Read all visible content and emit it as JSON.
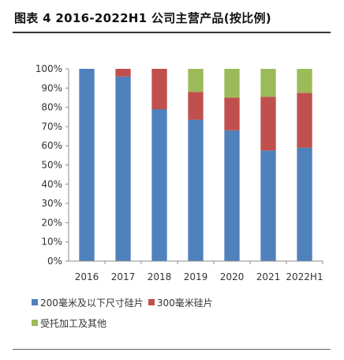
{
  "title": "图表 4 2016-2022H1 公司主营产品(按比例)",
  "chart_data": {
    "type": "bar",
    "stacked": true,
    "categories": [
      "2016",
      "2017",
      "2018",
      "2019",
      "2020",
      "2021",
      "2022H1"
    ],
    "series": [
      {
        "name": "200毫米及以下尺寸硅片",
        "color": "#4f81bd",
        "values": [
          100,
          96,
          79,
          73.5,
          68,
          57.5,
          59
        ]
      },
      {
        "name": "300毫米硅片",
        "color": "#c0504d",
        "values": [
          0,
          4,
          21,
          14.5,
          17,
          28,
          28.5
        ]
      },
      {
        "name": "受托加工及其他",
        "color": "#9bbb59",
        "values": [
          0,
          0,
          0,
          12,
          15,
          14.5,
          12.5
        ]
      }
    ],
    "ylim": [
      0,
      100
    ],
    "yticks": [
      "0%",
      "10%",
      "20%",
      "30%",
      "40%",
      "50%",
      "60%",
      "70%",
      "80%",
      "90%",
      "100%"
    ],
    "legend_position": "bottom"
  }
}
